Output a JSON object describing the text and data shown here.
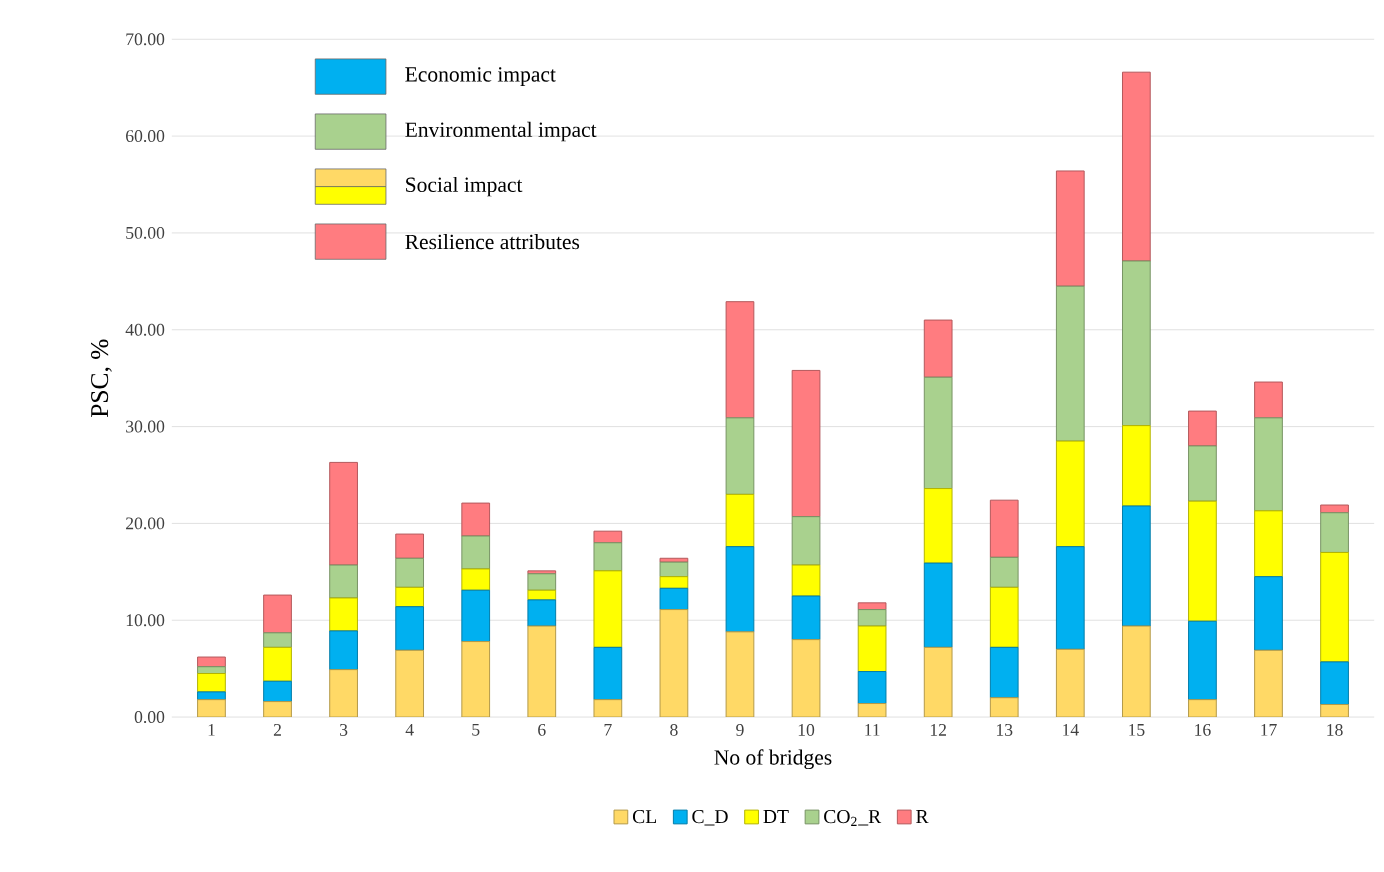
{
  "chart_data": {
    "type": "bar",
    "stacked": true,
    "xlabel": "No of bridges",
    "ylabel": "PSC, %",
    "categories": [
      "1",
      "2",
      "3",
      "4",
      "5",
      "6",
      "7",
      "8",
      "9",
      "10",
      "11",
      "12",
      "13",
      "14",
      "15",
      "16",
      "17",
      "18"
    ],
    "series": [
      {
        "name": "CL",
        "color": "#ffd966",
        "values": [
          1.8,
          1.6,
          4.9,
          6.9,
          7.8,
          9.4,
          1.8,
          11.1,
          8.8,
          8.0,
          1.4,
          7.2,
          2.0,
          7.0,
          9.4,
          1.8,
          6.9,
          1.3
        ]
      },
      {
        "name": "C_D",
        "color": "#00b0f0",
        "values": [
          0.8,
          2.1,
          4.0,
          4.5,
          5.3,
          2.7,
          5.4,
          2.2,
          8.8,
          4.5,
          3.3,
          8.7,
          5.2,
          10.6,
          12.4,
          8.1,
          7.6,
          4.4
        ]
      },
      {
        "name": "DT",
        "color": "#ffff00",
        "values": [
          1.9,
          3.5,
          3.4,
          2.0,
          2.2,
          1.0,
          7.9,
          1.2,
          5.4,
          3.2,
          4.7,
          7.7,
          6.2,
          10.9,
          8.3,
          12.4,
          6.8,
          11.3
        ]
      },
      {
        "name": "CO$_{2}$_R",
        "color": "#a9d18e",
        "values": [
          0.7,
          1.5,
          3.4,
          3.0,
          3.4,
          1.7,
          2.9,
          1.5,
          7.9,
          5.0,
          1.7,
          11.5,
          3.1,
          16.0,
          17.0,
          5.7,
          9.6,
          4.1
        ]
      },
      {
        "name": "R",
        "color": "#ff7c80",
        "values": [
          1.0,
          3.9,
          10.6,
          2.5,
          3.4,
          0.3,
          1.2,
          0.4,
          12.0,
          15.1,
          0.7,
          5.9,
          5.9,
          11.9,
          19.5,
          3.6,
          3.7,
          0.8
        ]
      }
    ],
    "ylim": [
      0,
      70
    ],
    "yticks": [
      {
        "value": 0,
        "label": "0.00"
      },
      {
        "value": 10,
        "label": "10.00"
      },
      {
        "value": 20,
        "label": "20.00"
      },
      {
        "value": 30,
        "label": "30.00"
      },
      {
        "value": 40,
        "label": "40.00"
      },
      {
        "value": 50,
        "label": "50.00"
      },
      {
        "value": 60,
        "label": "60.00"
      },
      {
        "value": 70,
        "label": "70.00"
      }
    ],
    "grid": "y",
    "legend": "bottom",
    "annotations": [
      "Economic impact",
      "Environmental impact",
      "Social impact",
      "Resilience attributes"
    ]
  }
}
